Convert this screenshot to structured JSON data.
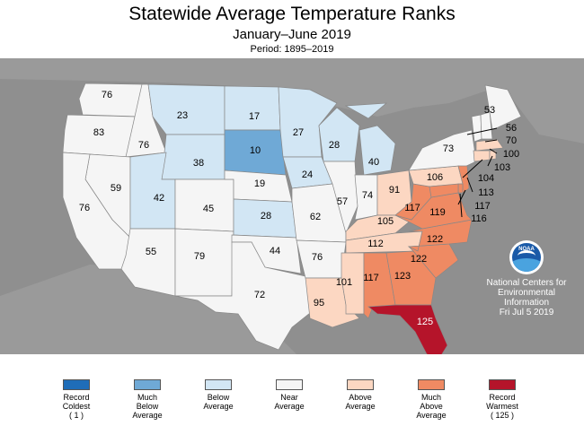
{
  "title": "Statewide Average Temperature Ranks",
  "subtitle": "January–June 2019",
  "period": "Period: 1895–2019",
  "credit": {
    "org_line1": "National Centers for",
    "org_line2": "Environmental",
    "org_line3": "Information",
    "date": "Fri Jul  5 2019",
    "logo_text": "NOAA"
  },
  "colors": {
    "record_coldest": "#1f6db8",
    "much_below": "#6fa9d6",
    "below": "#d2e6f4",
    "near": "#f5f5f5",
    "above": "#fcd7c2",
    "much_above": "#ef8a63",
    "record_warmest": "#b5142a",
    "background": "#8f8f8f"
  },
  "legend": [
    {
      "l1": "Record",
      "l2": "Coldest",
      "l3": "( 1 )",
      "color": "#1f6db8"
    },
    {
      "l1": "Much",
      "l2": "Below",
      "l3": "Average",
      "color": "#6fa9d6"
    },
    {
      "l1": "Below",
      "l2": "Average",
      "l3": "",
      "color": "#d2e6f4"
    },
    {
      "l1": "Near",
      "l2": "Average",
      "l3": "",
      "color": "#f5f5f5"
    },
    {
      "l1": "Above",
      "l2": "Average",
      "l3": "",
      "color": "#fcd7c2"
    },
    {
      "l1": "Much",
      "l2": "Above",
      "l3": "Average",
      "color": "#ef8a63"
    },
    {
      "l1": "Record",
      "l2": "Warmest",
      "l3": "( 125 )",
      "color": "#b5142a"
    }
  ],
  "states": {
    "WA": "76",
    "OR": "83",
    "ID": "76",
    "MT": "23",
    "WY": "38",
    "NV": "59",
    "CA": "76",
    "UT": "42",
    "CO": "45",
    "AZ": "55",
    "NM": "79",
    "ND": "17",
    "SD": "10",
    "NE": "19",
    "KS": "28",
    "OK": "44",
    "TX": "72",
    "MN": "27",
    "IA": "24",
    "MO": "62",
    "AR": "76",
    "LA": "95",
    "WI": "28",
    "IL": "57",
    "MI": "40",
    "IN": "74",
    "OH": "91",
    "KY": "105",
    "TN": "112",
    "MS": "101",
    "AL": "117",
    "GA": "123",
    "FL": "125",
    "SC": "122",
    "NC": "122",
    "VA": "119",
    "WV": "117",
    "PA": "106",
    "NY": "73",
    "ME": "53",
    "NH": "56",
    "VT": "70",
    "MA": "100",
    "RI": "103",
    "CT": "104",
    "NJ": "113",
    "DE": "117",
    "MD": "116"
  }
}
